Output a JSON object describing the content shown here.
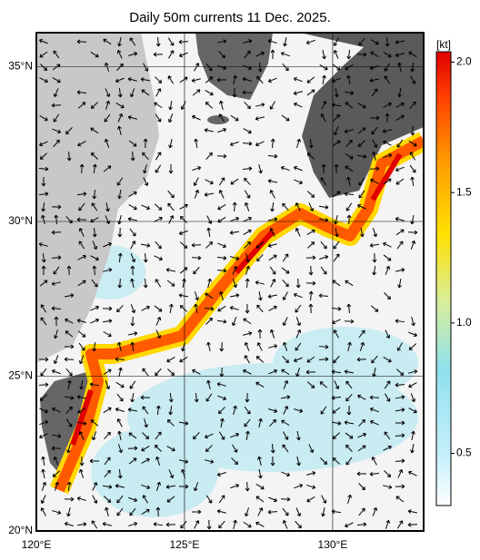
{
  "title": "Daily 50m currents 11 Dec. 2025.",
  "map": {
    "lonlim": [
      120,
      133.07
    ],
    "latlim": [
      20,
      36.1
    ],
    "lonticks": [
      {
        "value": 120,
        "label": "120°E"
      },
      {
        "value": 125,
        "label": "125°E"
      },
      {
        "value": 130,
        "label": "130°E"
      }
    ],
    "latticks": [
      {
        "value": 20,
        "label": "20°N"
      },
      {
        "value": 25,
        "label": "25°N"
      },
      {
        "value": 30,
        "label": "30°N"
      },
      {
        "value": 35,
        "label": "35°N"
      }
    ]
  },
  "colorbar": {
    "unit": "[kt]",
    "lim": [
      0.3,
      2.04
    ],
    "ticks": [
      0.5,
      {
        "value": 1,
        "label": "1.0"
      },
      1.5,
      {
        "value": 2,
        "label": "2.0"
      }
    ]
  }
}
